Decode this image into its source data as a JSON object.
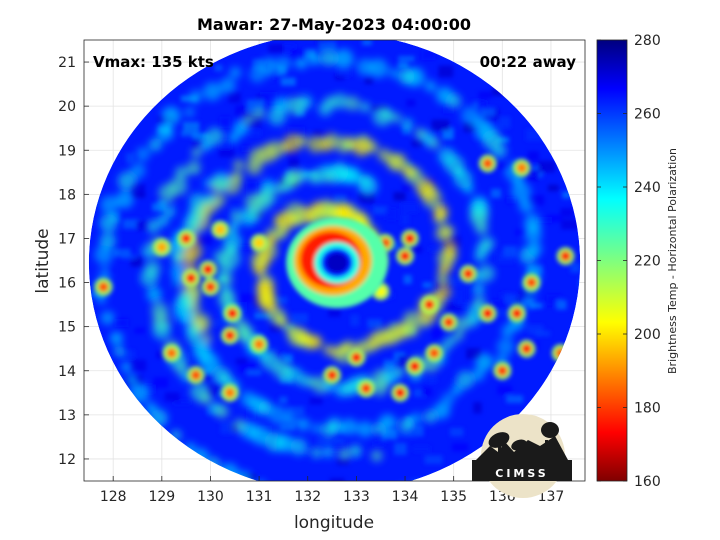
{
  "chart_data": {
    "type": "heatmap",
    "title": "Mawar: 27-May-2023 04:00:00",
    "xlabel": "longitude",
    "ylabel": "latitude",
    "xlim": [
      127.4,
      137.7
    ],
    "ylim": [
      11.5,
      21.5
    ],
    "xticks": [
      "128",
      "129",
      "130",
      "131",
      "132",
      "133",
      "134",
      "135",
      "136",
      "137"
    ],
    "yticks": [
      "12",
      "13",
      "14",
      "15",
      "16",
      "17",
      "18",
      "19",
      "20",
      "21"
    ],
    "grid": true,
    "colorbar": {
      "label": "Brightness Temp - Horizontal Polarization",
      "range": [
        160,
        280
      ],
      "ticks": [
        "160",
        "180",
        "200",
        "220",
        "240",
        "260",
        "280"
      ],
      "colormap": "jet"
    },
    "annotations": {
      "vmax": "Vmax: 135 kts",
      "away": "00:22 away"
    },
    "storm_center": {
      "lon": 132.6,
      "lat": 16.45
    },
    "swath_center": {
      "lon": 132.55,
      "lat": 16.45
    },
    "swath_radius_lon": 5.05,
    "rain_cells": [
      {
        "lon": 129.5,
        "lat": 17.0,
        "t": 180
      },
      {
        "lon": 129.6,
        "lat": 16.1,
        "t": 178
      },
      {
        "lon": 129.95,
        "lat": 16.3,
        "t": 175
      },
      {
        "lon": 130.0,
        "lat": 15.9,
        "t": 182
      },
      {
        "lon": 130.45,
        "lat": 15.3,
        "t": 176
      },
      {
        "lon": 130.4,
        "lat": 14.8,
        "t": 180
      },
      {
        "lon": 131.0,
        "lat": 14.6,
        "t": 190
      },
      {
        "lon": 129.2,
        "lat": 14.4,
        "t": 188
      },
      {
        "lon": 129.7,
        "lat": 13.9,
        "t": 185
      },
      {
        "lon": 130.4,
        "lat": 13.5,
        "t": 190
      },
      {
        "lon": 132.5,
        "lat": 13.9,
        "t": 180
      },
      {
        "lon": 133.0,
        "lat": 14.3,
        "t": 178
      },
      {
        "lon": 133.2,
        "lat": 13.6,
        "t": 182
      },
      {
        "lon": 133.9,
        "lat": 13.5,
        "t": 176
      },
      {
        "lon": 134.2,
        "lat": 14.1,
        "t": 175
      },
      {
        "lon": 134.6,
        "lat": 14.4,
        "t": 185
      },
      {
        "lon": 133.6,
        "lat": 16.9,
        "t": 185
      },
      {
        "lon": 134.0,
        "lat": 16.6,
        "t": 178
      },
      {
        "lon": 134.1,
        "lat": 17.0,
        "t": 175
      },
      {
        "lon": 134.5,
        "lat": 15.5,
        "t": 180
      },
      {
        "lon": 134.9,
        "lat": 15.1,
        "t": 182
      },
      {
        "lon": 135.3,
        "lat": 16.2,
        "t": 180
      },
      {
        "lon": 135.7,
        "lat": 15.3,
        "t": 176
      },
      {
        "lon": 136.3,
        "lat": 15.3,
        "t": 178
      },
      {
        "lon": 136.5,
        "lat": 14.5,
        "t": 180
      },
      {
        "lon": 136.6,
        "lat": 16.0,
        "t": 184
      },
      {
        "lon": 137.3,
        "lat": 16.6,
        "t": 180
      },
      {
        "lon": 137.2,
        "lat": 14.4,
        "t": 186
      },
      {
        "lon": 136.0,
        "lat": 14.0,
        "t": 182
      },
      {
        "lon": 127.8,
        "lat": 15.9,
        "t": 185
      },
      {
        "lon": 131.0,
        "lat": 16.9,
        "t": 200
      },
      {
        "lon": 133.5,
        "lat": 15.8,
        "t": 205
      },
      {
        "lon": 135.7,
        "lat": 18.7,
        "t": 185
      },
      {
        "lon": 136.4,
        "lat": 18.6,
        "t": 190
      },
      {
        "lon": 129.0,
        "lat": 16.8,
        "t": 195
      },
      {
        "lon": 130.2,
        "lat": 17.2,
        "t": 198
      }
    ],
    "bands": [
      {
        "r0": 0.75,
        "r1": 1.35,
        "t": 200,
        "phase": 0.0
      },
      {
        "r0": 1.6,
        "r1": 2.2,
        "t": 222,
        "phase": 1.2
      },
      {
        "r0": 2.6,
        "r1": 3.3,
        "t": 230,
        "phase": 2.5
      }
    ]
  },
  "logo": {
    "text": "CIMSS"
  }
}
